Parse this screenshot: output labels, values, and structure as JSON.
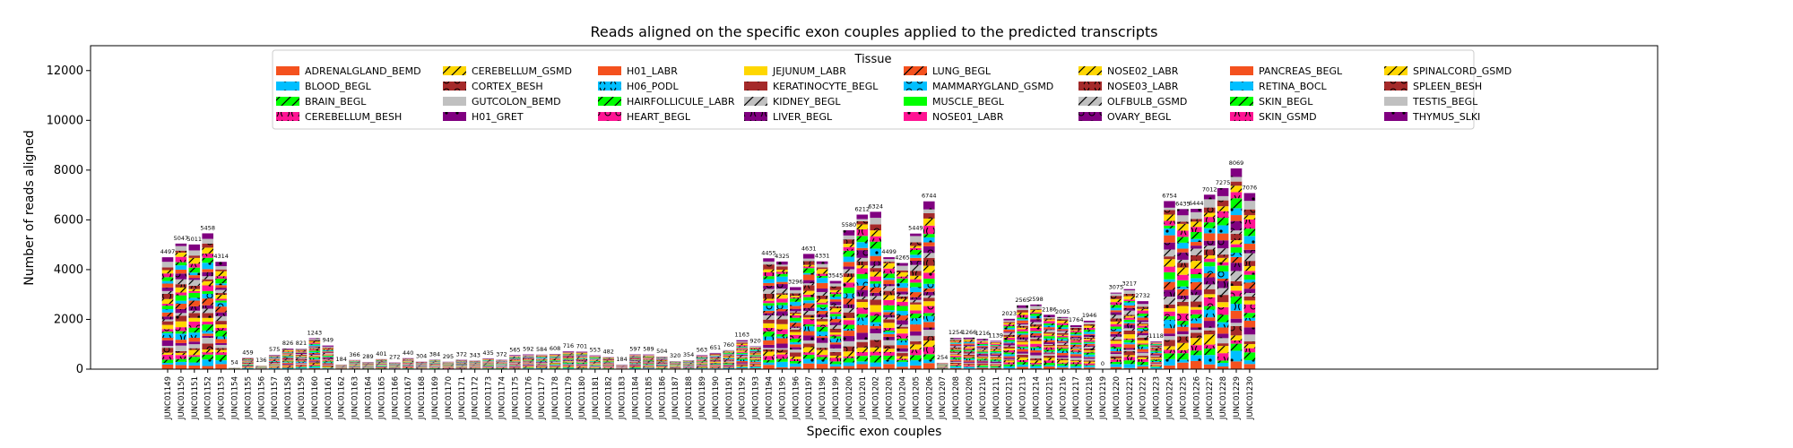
{
  "chart_data": {
    "type": "bar",
    "stacked": true,
    "title": "Reads aligned on the specific exon couples applied to the predicted transcripts",
    "xlabel": "Specific exon couples",
    "ylabel": "Number of reads aligned",
    "ylim": [
      0,
      13000
    ],
    "yticks": [
      0,
      2000,
      4000,
      6000,
      8000,
      10000,
      12000
    ],
    "grid": false,
    "legend": {
      "title": "Tissue",
      "placement": "top-center",
      "columns": 8
    },
    "series": [
      {
        "name": "ADRENALGLAND_BEMD",
        "color": "#f4511e",
        "hatch": ""
      },
      {
        "name": "BLOOD_BEGL",
        "color": "#00bfff",
        "hatch": "dot"
      },
      {
        "name": "BRAIN_BEGL",
        "color": "#00ff00",
        "hatch": "slash"
      },
      {
        "name": "CEREBELLUM_BESH",
        "color": "#ff1493",
        "hatch": "paren"
      },
      {
        "name": "CEREBELLUM_GSMD",
        "color": "#ffd700",
        "hatch": "slash"
      },
      {
        "name": "CORTEX_BESH",
        "color": "#a52a2a",
        "hatch": "ring"
      },
      {
        "name": "GUTCOLON_BEMD",
        "color": "#c0c0c0",
        "hatch": ""
      },
      {
        "name": "H01_GRET",
        "color": "#800080",
        "hatch": "dot"
      },
      {
        "name": "H01_LABR",
        "color": "#f4511e",
        "hatch": ""
      },
      {
        "name": "H06_PODL",
        "color": "#00bfff",
        "hatch": "paren"
      },
      {
        "name": "HAIRFOLLICULE_LABR",
        "color": "#00ff00",
        "hatch": "slash"
      },
      {
        "name": "HEART_BEGL",
        "color": "#ff1493",
        "hatch": "ring"
      },
      {
        "name": "JEJUNUM_LABR",
        "color": "#ffd700",
        "hatch": ""
      },
      {
        "name": "KERATINOCYTE_BEGL",
        "color": "#a52a2a",
        "hatch": "dot"
      },
      {
        "name": "KIDNEY_BEGL",
        "color": "#c0c0c0",
        "hatch": "slash"
      },
      {
        "name": "LIVER_BEGL",
        "color": "#800080",
        "hatch": "paren"
      },
      {
        "name": "LUNG_BEGL",
        "color": "#f4511e",
        "hatch": "slash"
      },
      {
        "name": "MAMMARYGLAND_GSMD",
        "color": "#00bfff",
        "hatch": "ring"
      },
      {
        "name": "MUSCLE_BEGL",
        "color": "#00ff00",
        "hatch": ""
      },
      {
        "name": "NOSE01_LABR",
        "color": "#ff1493",
        "hatch": "dot"
      },
      {
        "name": "NOSE02_LABR",
        "color": "#ffd700",
        "hatch": "slash"
      },
      {
        "name": "NOSE03_LABR",
        "color": "#a52a2a",
        "hatch": "paren"
      },
      {
        "name": "OLFBULB_GSMD",
        "color": "#c0c0c0",
        "hatch": "slash"
      },
      {
        "name": "OVARY_BEGL",
        "color": "#800080",
        "hatch": "ring"
      },
      {
        "name": "PANCREAS_BEGL",
        "color": "#f4511e",
        "hatch": ""
      },
      {
        "name": "RETINA_BOCL",
        "color": "#00bfff",
        "hatch": "dot"
      },
      {
        "name": "SKIN_BEGL",
        "color": "#00ff00",
        "hatch": "slash"
      },
      {
        "name": "SKIN_GSMD",
        "color": "#ff1493",
        "hatch": "paren"
      },
      {
        "name": "SPINALCORD_GSMD",
        "color": "#ffd700",
        "hatch": "slash"
      },
      {
        "name": "SPLEEN_BESH",
        "color": "#a52a2a",
        "hatch": "ring"
      },
      {
        "name": "TESTIS_BEGL",
        "color": "#c0c0c0",
        "hatch": ""
      },
      {
        "name": "THYMUS_SLKI",
        "color": "#800080",
        "hatch": "dot"
      }
    ],
    "categories": [
      "JUNC01149",
      "JUNC01150",
      "JUNC01151",
      "JUNC01152",
      "JUNC01153",
      "JUNC01154",
      "JUNC01155",
      "JUNC01156",
      "JUNC01157",
      "JUNC01158",
      "JUNC01159",
      "JUNC01160",
      "JUNC01161",
      "JUNC01162",
      "JUNC01163",
      "JUNC01164",
      "JUNC01165",
      "JUNC01166",
      "JUNC01167",
      "JUNC01168",
      "JUNC01169",
      "JUNC01170",
      "JUNC01171",
      "JUNC01172",
      "JUNC01173",
      "JUNC01174",
      "JUNC01175",
      "JUNC01176",
      "JUNC01177",
      "JUNC01178",
      "JUNC01179",
      "JUNC01180",
      "JUNC01181",
      "JUNC01182",
      "JUNC01183",
      "JUNC01184",
      "JUNC01185",
      "JUNC01186",
      "JUNC01187",
      "JUNC01188",
      "JUNC01189",
      "JUNC01190",
      "JUNC01191",
      "JUNC01192",
      "JUNC01193",
      "JUNC01194",
      "JUNC01195",
      "JUNC01196",
      "JUNC01197",
      "JUNC01198",
      "JUNC01199",
      "JUNC01200",
      "JUNC01201",
      "JUNC01202",
      "JUNC01203",
      "JUNC01204",
      "JUNC01205",
      "JUNC01206",
      "JUNC01207",
      "JUNC01208",
      "JUNC01209",
      "JUNC01210",
      "JUNC01211",
      "JUNC01212",
      "JUNC01213",
      "JUNC01214",
      "JUNC01215",
      "JUNC01216",
      "JUNC01217",
      "JUNC01218",
      "JUNC01219",
      "JUNC01220",
      "JUNC01221",
      "JUNC01222",
      "JUNC01223",
      "JUNC01224",
      "JUNC01225",
      "JUNC01226",
      "JUNC01227",
      "JUNC01228",
      "JUNC01229",
      "JUNC01230"
    ],
    "totals": [
      4497,
      5047,
      5011,
      5458,
      4314,
      54,
      459,
      136,
      575,
      826,
      821,
      1243,
      949,
      184,
      366,
      289,
      401,
      272,
      440,
      304,
      384,
      295,
      372,
      343,
      435,
      372,
      565,
      592,
      584,
      608,
      716,
      701,
      553,
      482,
      184,
      597,
      589,
      504,
      320,
      354,
      563,
      651,
      760,
      1163,
      920,
      4455,
      4325,
      3296,
      4631,
      4331,
      3545,
      5580,
      6212,
      6324,
      4499,
      4265,
      5449,
      6744,
      254,
      1254,
      1266,
      1216,
      1139,
      2023,
      2565,
      2598,
      2186,
      2095,
      1764,
      1946,
      0,
      3075,
      3217,
      2732,
      1118,
      6754,
      6435,
      6444,
      7012,
      7275,
      8069,
      7076
    ]
  }
}
